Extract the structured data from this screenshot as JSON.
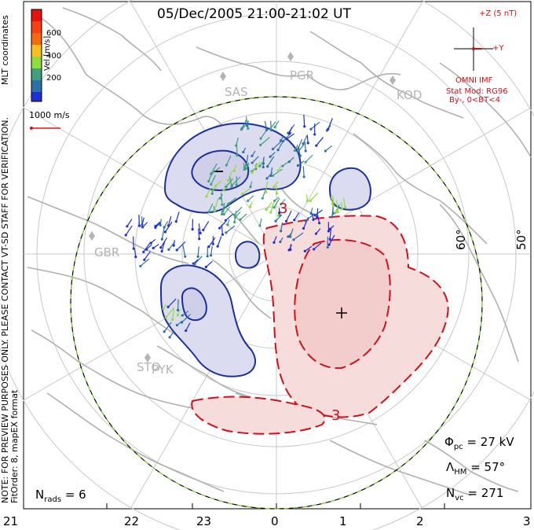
{
  "title": "05/Dec/2005 21:00-21:02 UT",
  "color_bar": {
    "label": "Vel [m/s]",
    "ticks": [
      "600",
      "400",
      "200"
    ],
    "colors": [
      "#1f2fd8",
      "#2f6fa8",
      "#3f9f7f",
      "#8fdc3c",
      "#f8c020",
      "#f86a10",
      "#e81010"
    ]
  },
  "coordinate_label": "MLT coordinates",
  "reference_vector": "1000 m/s",
  "side_note": "NOTE: FOR PREVIEW PURPOSES ONLY. PLEASE CONTACT VT-SD STAFF FOR VERIFICATION.",
  "fit_info": "FitOrder: 8, mapEX format",
  "imf": {
    "z_label": "+Z (5 nT)",
    "y_label": "+Y",
    "source": "OMNI IMF",
    "model": "Stat Mod: RG96",
    "condition": "By-, 0<BT<4"
  },
  "stations": [
    "PGR",
    "SAS",
    "KOD",
    "GBR",
    "STO",
    "PYK"
  ],
  "latitudes": [
    "60°",
    "50°"
  ],
  "mlt_ticks": [
    "21",
    "22",
    "23",
    "0",
    "1",
    "2",
    "3"
  ],
  "contour_labels": [
    "3",
    "3"
  ],
  "stats": {
    "n_rads_label": "N",
    "n_rads_sub": "rads",
    "n_rads_value": "= 6",
    "phi_pc_label": "Φ",
    "phi_pc_sub": "pc",
    "phi_pc_value": "= 27 kV",
    "lambda_label": "Λ",
    "lambda_sub": "HM",
    "lambda_value": "= 57°",
    "n_vc_label": "N",
    "n_vc_sub": "vc",
    "n_vc_value": "= 271"
  },
  "colors": {
    "negative_cell": "#1a2fa0",
    "negative_fill": "#dcdcf0",
    "positive_cell": "#d0101a",
    "positive_fill": "#f7dcdc",
    "grid": "#c8c8c8",
    "coastline": "#b0b0b0"
  }
}
